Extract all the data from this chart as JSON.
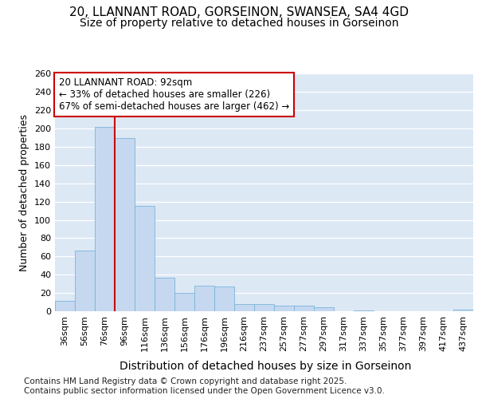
{
  "title_line1": "20, LLANNANT ROAD, GORSEINON, SWANSEA, SA4 4GD",
  "title_line2": "Size of property relative to detached houses in Gorseinon",
  "xlabel": "Distribution of detached houses by size in Gorseinon",
  "ylabel": "Number of detached properties",
  "bar_labels": [
    "36sqm",
    "56sqm",
    "76sqm",
    "96sqm",
    "116sqm",
    "136sqm",
    "156sqm",
    "176sqm",
    "196sqm",
    "216sqm",
    "237sqm",
    "257sqm",
    "277sqm",
    "297sqm",
    "317sqm",
    "337sqm",
    "357sqm",
    "377sqm",
    "397sqm",
    "417sqm",
    "437sqm"
  ],
  "bar_values": [
    11,
    66,
    202,
    190,
    115,
    37,
    20,
    28,
    27,
    8,
    8,
    6,
    6,
    4,
    0,
    1,
    0,
    0,
    0,
    0,
    2
  ],
  "bar_color": "#c5d8f0",
  "bar_edge_color": "#7ab4d8",
  "vline_color": "#cc0000",
  "vline_position": 2.5,
  "annotation_text": "20 LLANNANT ROAD: 92sqm\n← 33% of detached houses are smaller (226)\n67% of semi-detached houses are larger (462) →",
  "annotation_box_facecolor": "#ffffff",
  "annotation_box_edgecolor": "#cc0000",
  "ylim": [
    0,
    260
  ],
  "yticks": [
    0,
    20,
    40,
    60,
    80,
    100,
    120,
    140,
    160,
    180,
    200,
    220,
    240,
    260
  ],
  "plot_bg_color": "#dde8f5",
  "fig_bg_color": "#ffffff",
  "footer_text": "Contains HM Land Registry data © Crown copyright and database right 2025.\nContains public sector information licensed under the Open Government Licence v3.0.",
  "title_fontsize": 11,
  "subtitle_fontsize": 10,
  "xlabel_fontsize": 10,
  "ylabel_fontsize": 9,
  "tick_fontsize": 8,
  "annotation_fontsize": 8.5,
  "footer_fontsize": 7.5
}
